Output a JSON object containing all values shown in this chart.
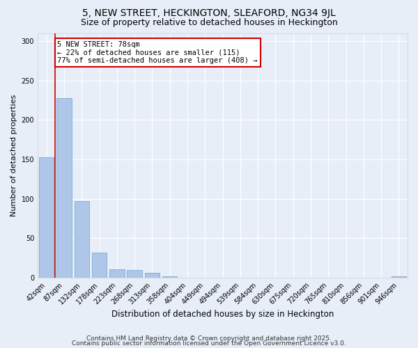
{
  "title1": "5, NEW STREET, HECKINGTON, SLEAFORD, NG34 9JL",
  "title2": "Size of property relative to detached houses in Heckington",
  "xlabel": "Distribution of detached houses by size in Heckington",
  "ylabel": "Number of detached properties",
  "categories": [
    "42sqm",
    "87sqm",
    "132sqm",
    "178sqm",
    "223sqm",
    "268sqm",
    "313sqm",
    "358sqm",
    "404sqm",
    "449sqm",
    "494sqm",
    "539sqm",
    "584sqm",
    "630sqm",
    "675sqm",
    "720sqm",
    "765sqm",
    "810sqm",
    "856sqm",
    "901sqm",
    "946sqm"
  ],
  "values": [
    153,
    228,
    97,
    32,
    11,
    10,
    6,
    2,
    0,
    0,
    0,
    0,
    0,
    0,
    0,
    0,
    0,
    0,
    0,
    0,
    2
  ],
  "bar_color": "#aec6e8",
  "bar_edge_color": "#7aaad0",
  "vline_x": 0.5,
  "vline_color": "#cc0000",
  "annotation_text": "5 NEW STREET: 78sqm\n← 22% of detached houses are smaller (115)\n77% of semi-detached houses are larger (408) →",
  "annotation_box_color": "#ffffff",
  "annotation_box_edgecolor": "#cc0000",
  "ylim": [
    0,
    310
  ],
  "yticks": [
    0,
    50,
    100,
    150,
    200,
    250,
    300
  ],
  "bg_color": "#e8eef8",
  "footer1": "Contains HM Land Registry data © Crown copyright and database right 2025.",
  "footer2": "Contains public sector information licensed under the Open Government Licence v3.0.",
  "title1_fontsize": 10,
  "title2_fontsize": 9,
  "xlabel_fontsize": 8.5,
  "ylabel_fontsize": 8,
  "tick_fontsize": 7,
  "annotation_fontsize": 7.5,
  "footer_fontsize": 6.5
}
